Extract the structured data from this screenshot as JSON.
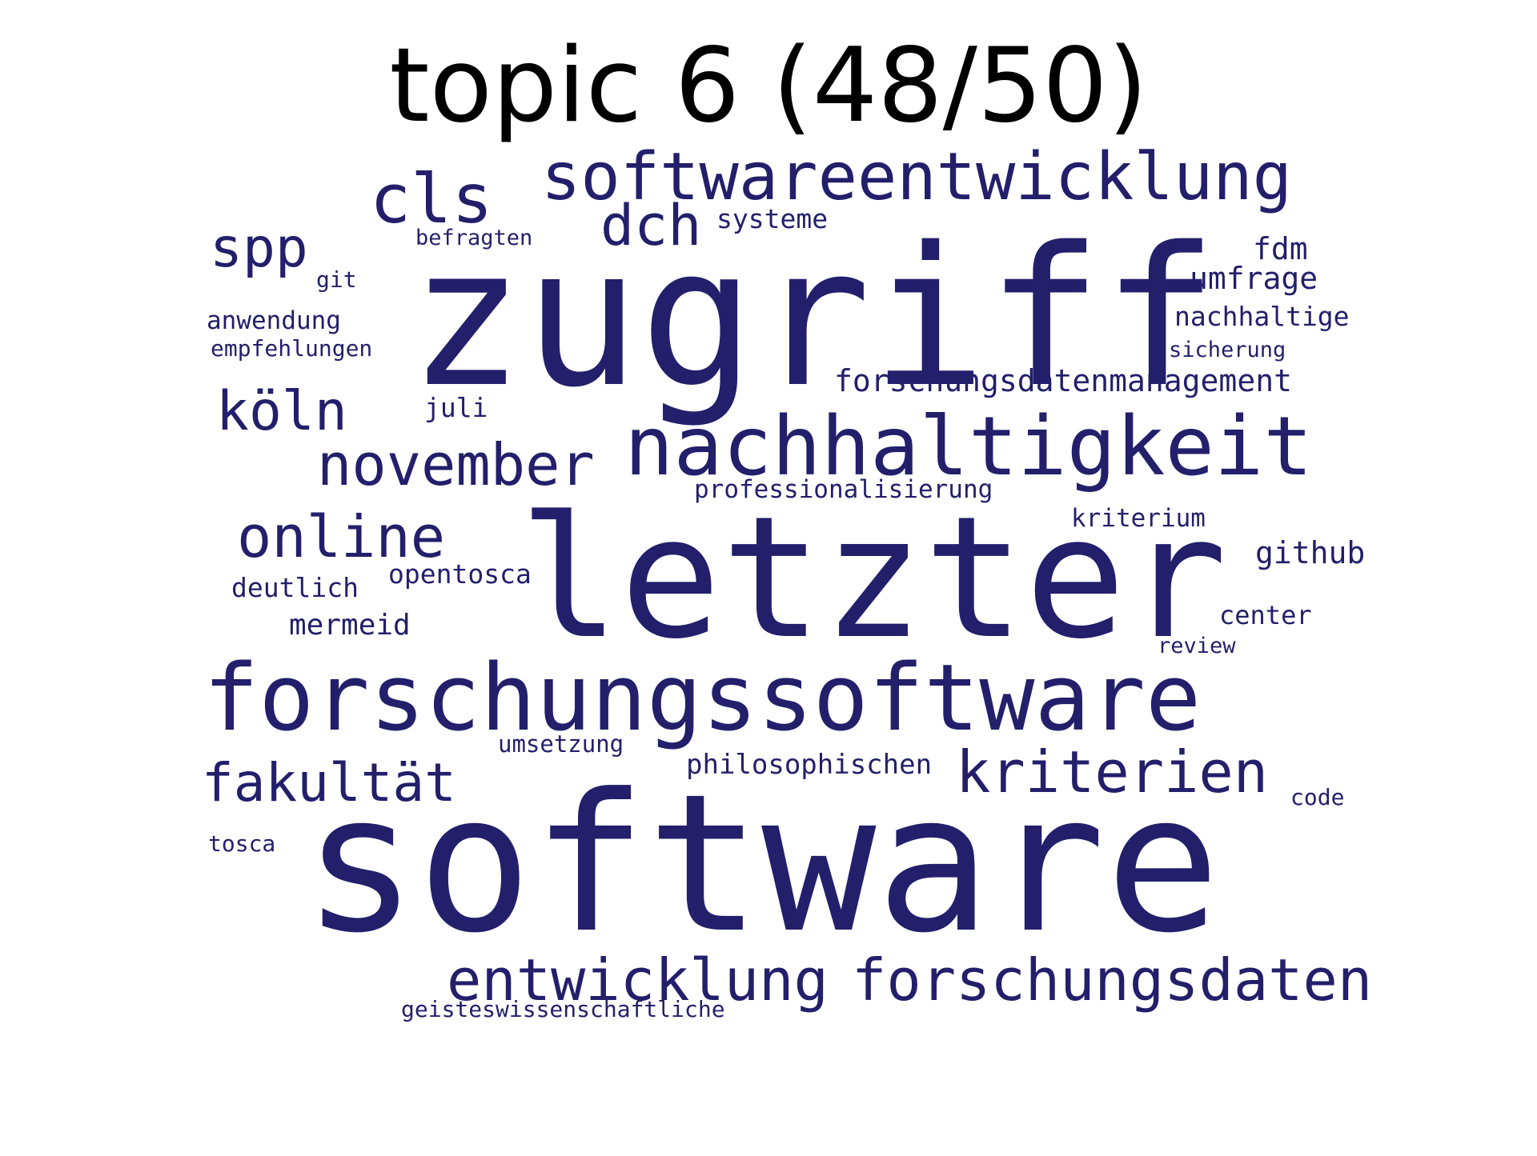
{
  "title": "topic 6 (48/50)",
  "word_color": "#231f6b",
  "words": [
    "software",
    "zugriff",
    "letzter",
    "forschungssoftware",
    "nachhaltigkeit",
    "softwareentwicklung",
    "forschungsdaten",
    "entwicklung",
    "cls",
    "november",
    "kriterien",
    "online",
    "fakultät",
    "köln",
    "spp",
    "dch",
    "forschungsdatenmanagement",
    "umfrage",
    "fdm",
    "nachhaltige",
    "philosophischen",
    "github",
    "professionalisierung",
    "anwendung",
    "empfehlungen",
    "systeme",
    "befragten",
    "git",
    "sicherung",
    "juli",
    "kriterium",
    "opentosca",
    "deutlich",
    "mermeid",
    "center",
    "review",
    "umsetzung",
    "code",
    "tosca",
    "geisteswissenschaftliche"
  ]
}
